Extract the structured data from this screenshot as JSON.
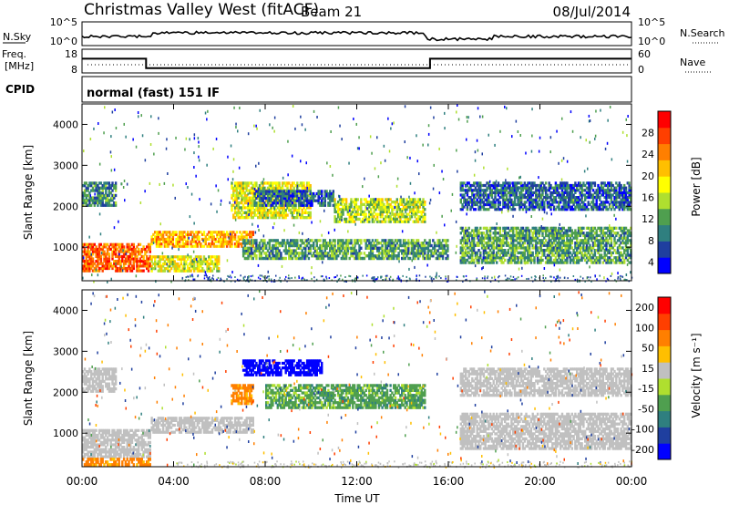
{
  "header": {
    "station": "Christmas Valley West (fitACF)",
    "beam": "Beam 21",
    "date": "08/Jul/2014"
  },
  "noise_panel": {
    "left_label": "N.Sky",
    "right_label": "N.Search",
    "left_ticks": [
      "10^5",
      "10^0"
    ],
    "right_ticks": [
      "10^5",
      "10^0"
    ]
  },
  "freq_panel": {
    "left_label_1": "Freq.",
    "left_label_2": "[MHz]",
    "right_label": "Nave",
    "left_ticks": [
      "18",
      "8"
    ],
    "right_ticks": [
      "60",
      "0"
    ],
    "freq_steps": [
      {
        "from": 0,
        "to": 2.8,
        "value": 14
      },
      {
        "from": 2.8,
        "to": 15.2,
        "value": 10
      },
      {
        "from": 15.2,
        "to": 24,
        "value": 14
      }
    ]
  },
  "cpid": {
    "label": "CPID",
    "value": "normal (fast) 151 IF"
  },
  "chart_data": [
    {
      "type": "heatmap",
      "name": "power",
      "ylabel": "Slant Range [km]",
      "yticks": [
        "1000",
        "2000",
        "3000",
        "4000"
      ],
      "ylim": [
        180,
        4500
      ],
      "xlim": [
        0,
        24
      ],
      "colorbar": {
        "label": "Power [dB]",
        "ticks": [
          "4",
          "8",
          "12",
          "16",
          "20",
          "24",
          "28"
        ],
        "colors": [
          "#0000ff",
          "#1f3f9f",
          "#2f7f7f",
          "#4f9f4f",
          "#afdf2f",
          "#ffff00",
          "#ffbf00",
          "#ff7f00",
          "#ff3f00",
          "#ff0000"
        ]
      },
      "bands": [
        {
          "x0": 0,
          "x1": 3,
          "r0": 400,
          "r1": 1100,
          "value": 26
        },
        {
          "x0": 3,
          "x1": 7.5,
          "r0": 1000,
          "r1": 1400,
          "value": 22
        },
        {
          "x0": 3,
          "x1": 6,
          "r0": 400,
          "r1": 800,
          "value": 18
        },
        {
          "x0": 6.5,
          "x1": 10,
          "r0": 1700,
          "r1": 2600,
          "value": 18
        },
        {
          "x0": 7.5,
          "x1": 11,
          "r0": 2000,
          "r1": 2400,
          "value": 8
        },
        {
          "x0": 11,
          "x1": 15,
          "r0": 1600,
          "r1": 2200,
          "value": 16
        },
        {
          "x0": 7,
          "x1": 16,
          "r0": 700,
          "r1": 1200,
          "value": 12
        },
        {
          "x0": 16.5,
          "x1": 24,
          "r0": 1900,
          "r1": 2600,
          "value": 8
        },
        {
          "x0": 16.5,
          "x1": 24,
          "r0": 600,
          "r1": 1500,
          "value": 12
        },
        {
          "x0": 0,
          "x1": 1.5,
          "r0": 2000,
          "r1": 2600,
          "value": 10
        }
      ]
    },
    {
      "type": "heatmap",
      "name": "velocity",
      "ylabel": "Slant Range [km]",
      "yticks": [
        "1000",
        "2000",
        "3000",
        "4000"
      ],
      "ylim": [
        180,
        4500
      ],
      "xlim": [
        0,
        24
      ],
      "xlabel": "Time UT",
      "xticks": [
        "00:00",
        "04:00",
        "08:00",
        "12:00",
        "16:00",
        "20:00",
        "00:00"
      ],
      "colorbar": {
        "label": "Velocity [m s⁻¹]",
        "ticks": [
          "200",
          "100",
          "50",
          "15",
          "-15",
          "-50",
          "-100",
          "-200"
        ],
        "colors": [
          "#0000ff",
          "#1f3f9f",
          "#2f7f7f",
          "#4f9f4f",
          "#afdf2f",
          "#c0c0c0",
          "#ffbf00",
          "#ff7f00",
          "#ff3f00",
          "#ff0000"
        ]
      },
      "bands": [
        {
          "x0": 0,
          "x1": 3,
          "r0": 400,
          "r1": 1100,
          "value": 0
        },
        {
          "x0": 3,
          "x1": 7.5,
          "r0": 1000,
          "r1": 1400,
          "value": 0
        },
        {
          "x0": 0,
          "x1": 3,
          "r0": 200,
          "r1": 400,
          "value": -60
        },
        {
          "x0": 7,
          "x1": 10.5,
          "r0": 2400,
          "r1": 2800,
          "value": 180
        },
        {
          "x0": 6.5,
          "x1": 7.5,
          "r0": 1700,
          "r1": 2200,
          "value": -60
        },
        {
          "x0": 8,
          "x1": 15,
          "r0": 1600,
          "r1": 2200,
          "value": 40
        },
        {
          "x0": 16.5,
          "x1": 24,
          "r0": 1900,
          "r1": 2600,
          "value": 0
        },
        {
          "x0": 16.5,
          "x1": 24,
          "r0": 600,
          "r1": 1500,
          "value": 0
        },
        {
          "x0": 0,
          "x1": 1.5,
          "r0": 2000,
          "r1": 2600,
          "value": 0
        }
      ]
    }
  ]
}
